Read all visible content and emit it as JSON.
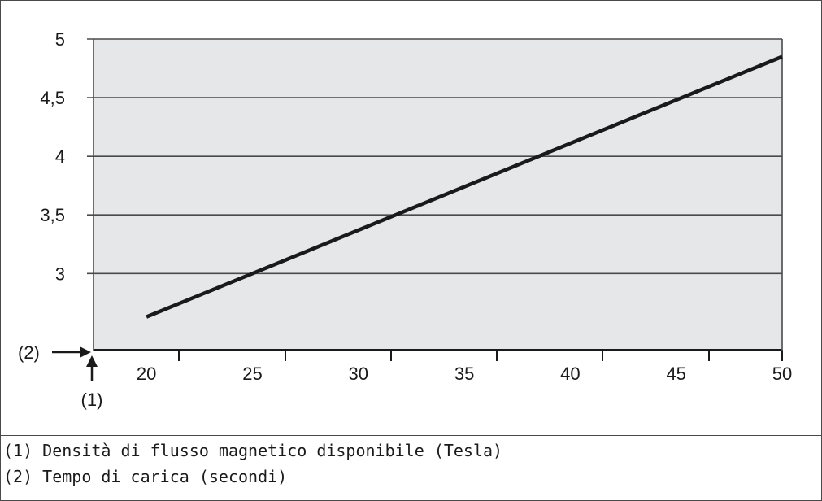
{
  "chart_data": {
    "type": "line",
    "x": [
      20,
      50
    ],
    "y": [
      2.63,
      4.85
    ],
    "xlim": [
      17.5,
      50
    ],
    "ylim": [
      2.35,
      5
    ],
    "x_tick_positions": [
      20,
      25,
      30,
      35,
      40,
      45,
      50
    ],
    "x_tick_labels": [
      "20",
      "25",
      "30",
      "35",
      "40",
      "45",
      "50"
    ],
    "y_ticks": [
      3,
      3.5,
      4,
      4.5,
      5
    ],
    "y_tick_labels": [
      "3",
      "3,5",
      "4",
      "4,5",
      "5"
    ],
    "x_marker": "(1)",
    "y_marker": "(2)",
    "grid": "horizontal",
    "colors": {
      "plot_background": "#e6e7e8",
      "line": "#1a1a1a",
      "grid": "#4a4a4a"
    }
  },
  "legend": [
    "(1) Densità di flusso magnetico disponibile (Tesla)",
    "(2) Tempo di carica (secondi)"
  ]
}
